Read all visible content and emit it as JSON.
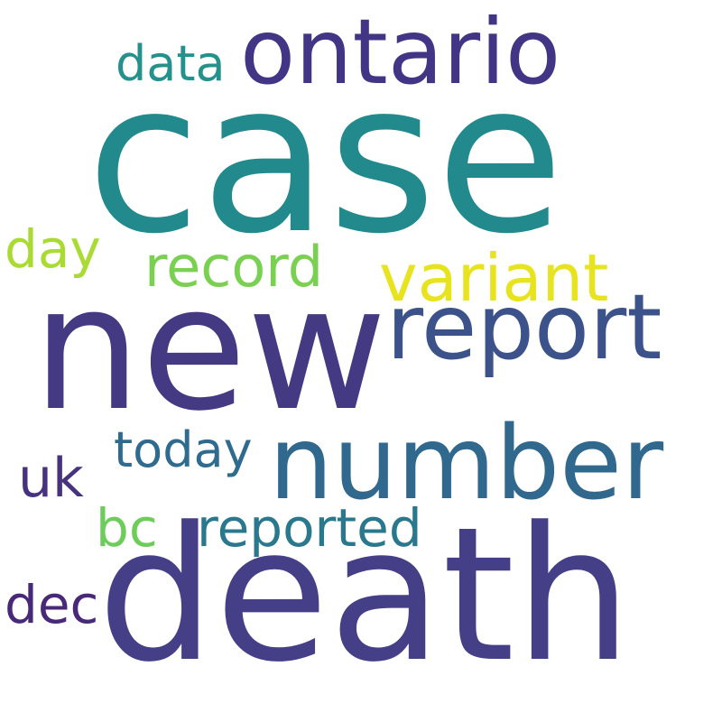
{
  "words": {
    "case": {
      "text": "case",
      "color": "#228a8d"
    },
    "new": {
      "text": "new",
      "color": "#443983"
    },
    "death": {
      "text": "death",
      "color": "#453f87"
    },
    "ontario": {
      "text": "ontario",
      "color": "#433585"
    },
    "report": {
      "text": "report",
      "color": "#3b528b"
    },
    "number": {
      "text": "number",
      "color": "#31688e"
    },
    "variant": {
      "text": "variant",
      "color": "#e7e31f"
    },
    "record": {
      "text": "record",
      "color": "#7ad151"
    },
    "data": {
      "text": "data",
      "color": "#25918c"
    },
    "day": {
      "text": "day",
      "color": "#a9db33"
    },
    "today": {
      "text": "today",
      "color": "#2f6b8e"
    },
    "uk": {
      "text": "uk",
      "color": "#46327e"
    },
    "bc": {
      "text": "bc",
      "color": "#6ccd5a"
    },
    "reported": {
      "text": "reported",
      "color": "#2a788e"
    },
    "dec": {
      "text": "dec",
      "color": "#482878"
    }
  }
}
